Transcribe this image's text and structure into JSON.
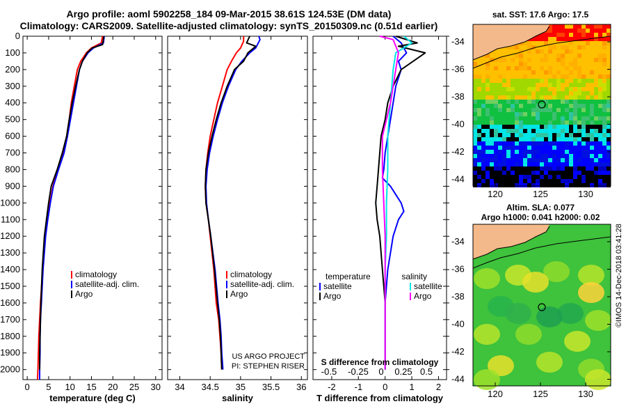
{
  "header": {
    "title_line1": "Argo profile: aoml 5902258_184 09-Mar-2015 38.61S 124.53E (DM data)",
    "title_line2": "Climatology: CARS2009. Satellite-adjusted climatology: synTS_20150309.nc (0.51d earlier)"
  },
  "depth_axis": {
    "range": [
      0,
      2060
    ],
    "ticks": [
      0,
      100,
      200,
      300,
      400,
      500,
      600,
      700,
      800,
      900,
      1000,
      1100,
      1200,
      1300,
      1400,
      1500,
      1600,
      1700,
      1800,
      1900,
      2000
    ]
  },
  "colors": {
    "climatology": "#ff0000",
    "satellite": "#0000ff",
    "argo": "#000000",
    "sat_salinity": "#00e5e5",
    "argo_salinity": "#ff00ff"
  },
  "chart_data": [
    {
      "type": "line",
      "title": "",
      "xlabel": "temperature (deg C)",
      "ylabel": "depth",
      "xlim": [
        -1,
        31.5
      ],
      "ylim": [
        2060,
        0
      ],
      "xticks": [
        0,
        5,
        10,
        15,
        20,
        25,
        30
      ],
      "xticklabels": [
        "0",
        "5",
        "10",
        "15",
        "20",
        "25",
        "30"
      ],
      "legend": [
        "climatology",
        "satellite-adj. clim.",
        "Argo"
      ],
      "series": [
        {
          "name": "climatology",
          "color": "#ff0000",
          "x": [
            17.6,
            17.3,
            15.0,
            13.8,
            12.5,
            11.7,
            11.0,
            10.3,
            9.8,
            9.2,
            8.5,
            7.2,
            6.0,
            5.3,
            4.7,
            4.2,
            3.6,
            3.1,
            2.9,
            2.7,
            2.6,
            2.5,
            2.4
          ],
          "y": [
            0,
            40,
            70,
            100,
            150,
            200,
            300,
            400,
            500,
            600,
            700,
            800,
            900,
            1000,
            1100,
            1200,
            1400,
            1600,
            1700,
            1800,
            1900,
            2000,
            2060
          ]
        },
        {
          "name": "satellite-adj. clim.",
          "color": "#0000ff",
          "x": [
            18.0,
            17.8,
            15.5,
            14.2,
            12.9,
            12.2,
            11.5,
            10.8,
            10.1,
            9.4,
            8.6,
            7.3,
            6.1,
            5.4,
            4.8,
            4.3,
            3.7,
            3.3,
            3.1,
            3.0,
            3.0,
            2.9,
            2.9
          ],
          "y": [
            0,
            40,
            70,
            100,
            150,
            200,
            300,
            400,
            500,
            600,
            700,
            800,
            900,
            1000,
            1100,
            1200,
            1400,
            1600,
            1700,
            1800,
            1900,
            2000,
            2060
          ]
        },
        {
          "name": "Argo",
          "color": "#000000",
          "x": [
            17.9,
            17.6,
            15.2,
            14.0,
            12.9,
            12.2,
            11.3,
            10.5,
            9.8,
            9.2,
            8.2,
            7.0,
            5.6,
            5.0,
            4.5,
            4.0,
            3.5,
            3.2,
            3.1,
            3.0,
            2.9,
            2.9
          ],
          "y": [
            0,
            50,
            70,
            100,
            150,
            200,
            300,
            400,
            500,
            600,
            700,
            800,
            900,
            1000,
            1100,
            1200,
            1400,
            1600,
            1700,
            1800,
            1900,
            2000
          ]
        }
      ]
    },
    {
      "type": "line",
      "xlabel": "salinity",
      "ylim": [
        2060,
        0
      ],
      "xlim": [
        33.8,
        36.1
      ],
      "xticks": [
        34,
        34.5,
        35,
        35.5,
        36
      ],
      "xticklabels": [
        "34",
        "34.5",
        "35",
        "35.5",
        "36"
      ],
      "legend": [
        "climatology",
        "satellite-adj. clim.",
        "Argo"
      ],
      "annotation": [
        "US ARGO PROJECT",
        "PI: STEPHEN RISER"
      ],
      "series": [
        {
          "name": "climatology",
          "color": "#ff0000",
          "x": [
            35.05,
            35.05,
            35.0,
            34.93,
            34.85,
            34.78,
            34.7,
            34.62,
            34.56,
            34.5,
            34.46,
            34.43,
            34.42,
            34.43,
            34.47,
            34.5,
            34.56,
            34.6,
            34.64,
            34.66,
            34.68,
            34.69
          ],
          "y": [
            0,
            30,
            70,
            100,
            150,
            200,
            300,
            400,
            500,
            600,
            700,
            800,
            900,
            1000,
            1100,
            1200,
            1400,
            1600,
            1700,
            1800,
            1900,
            2000
          ]
        },
        {
          "name": "satellite-adj. clim.",
          "color": "#0000ff",
          "x": [
            35.3,
            35.32,
            35.25,
            35.15,
            35.02,
            34.92,
            34.8,
            34.7,
            34.62,
            34.55,
            34.49,
            34.45,
            34.43,
            34.44,
            34.47,
            34.51,
            34.58,
            34.63,
            34.66,
            34.68,
            34.69,
            34.71
          ],
          "y": [
            0,
            20,
            70,
            100,
            150,
            200,
            300,
            400,
            500,
            600,
            700,
            800,
            900,
            1000,
            1100,
            1200,
            1400,
            1600,
            1700,
            1800,
            1900,
            2000
          ]
        },
        {
          "name": "Argo",
          "color": "#000000",
          "x": [
            35.15,
            35.1,
            35.25,
            35.12,
            35.05,
            34.9,
            34.78,
            34.68,
            34.6,
            34.53,
            34.47,
            34.43,
            34.42,
            34.43,
            34.47,
            34.51,
            34.57,
            34.62,
            34.65,
            34.67,
            34.68,
            34.69
          ],
          "y": [
            0,
            40,
            60,
            100,
            150,
            200,
            300,
            400,
            500,
            600,
            700,
            800,
            900,
            1000,
            1100,
            1200,
            1400,
            1600,
            1700,
            1800,
            1900,
            2000
          ]
        }
      ]
    },
    {
      "type": "line",
      "xlabel": "T difference from climatology",
      "ylim": [
        2060,
        0
      ],
      "xlim": [
        -2.7,
        2.3
      ],
      "xticks": [
        -2,
        -1,
        0,
        1,
        2
      ],
      "xticklabels": [
        "-2",
        "-1",
        "0",
        "1",
        "2"
      ],
      "secondary_xlabel": "S difference from climatology",
      "secondary_xticklabels": [
        "-0.5",
        "-0.25",
        "0",
        "0.25",
        "0.5"
      ],
      "legend_left": {
        "title": "temperature",
        "entries": [
          "satellite",
          "Argo"
        ]
      },
      "legend_right": {
        "title": "salinity",
        "entries": [
          "satellite",
          "Argo"
        ]
      },
      "series": [
        {
          "name": "T satellite",
          "color": "#0000ff",
          "x": [
            0.3,
            0.6,
            0.8,
            0.5,
            0.6,
            0.4,
            0.3,
            0.2,
            0.1,
            0.0,
            -0.05,
            -0.1,
            0.2,
            0.6,
            0.7,
            0.5,
            0.3,
            0.1,
            0.0,
            0.0,
            0.0
          ],
          "y": [
            0,
            40,
            100,
            150,
            200,
            300,
            400,
            500,
            600,
            700,
            800,
            850,
            900,
            1000,
            1050,
            1100,
            1200,
            1400,
            1600,
            1800,
            2000
          ]
        },
        {
          "name": "T Argo",
          "color": "#000000",
          "x": [
            0.4,
            1.2,
            0.5,
            1.5,
            0.6,
            0.3,
            0.1,
            0.0,
            -0.15,
            -0.2,
            -0.25,
            -0.3,
            -0.35,
            -0.3,
            -0.2,
            -0.1,
            0.0,
            0.0,
            0.0
          ],
          "y": [
            0,
            40,
            60,
            100,
            200,
            300,
            400,
            500,
            600,
            700,
            800,
            900,
            1000,
            1100,
            1200,
            1400,
            1600,
            1800,
            2000
          ]
        },
        {
          "name": "S satellite",
          "color": "#00e5e5",
          "x": [
            0.7,
            1.0,
            0.4,
            0.3,
            0.25,
            0.2,
            0.15,
            0.1,
            0.1,
            0.05,
            0.05,
            0.0,
            0.0,
            0.0,
            0.0
          ],
          "y": [
            0,
            40,
            100,
            200,
            300,
            400,
            500,
            600,
            800,
            1000,
            1200,
            1400,
            1600,
            1800,
            2000
          ]
        },
        {
          "name": "S Argo",
          "color": "#ff00ff",
          "x": [
            -0.2,
            0.3,
            0.5,
            0.4,
            0.3,
            0.2,
            -0.1,
            -0.1,
            0.0,
            0.0,
            0.0
          ],
          "y": [
            0,
            20,
            100,
            200,
            300,
            400,
            600,
            800,
            1200,
            1600,
            2000
          ]
        }
      ]
    },
    {
      "type": "heatmap",
      "title": "sat. SST: 17.6 Argo: 17.5",
      "xticklabels": [
        "120",
        "125",
        "130"
      ],
      "yticklabels": [
        "-34",
        "-36",
        "-38",
        "-40",
        "-42",
        "-44"
      ]
    },
    {
      "type": "heatmap",
      "title_line1": "Altim. SLA: 0.077",
      "title_line2": "Argo h1000: 0.041 h2000: 0.02",
      "xticklabels": [
        "120",
        "125",
        "130"
      ],
      "yticklabels": [
        "-34",
        "-36",
        "-38",
        "-40",
        "-42",
        "-44"
      ],
      "credit": "©IMOS 14-Dec-2018 03:41:28"
    }
  ]
}
